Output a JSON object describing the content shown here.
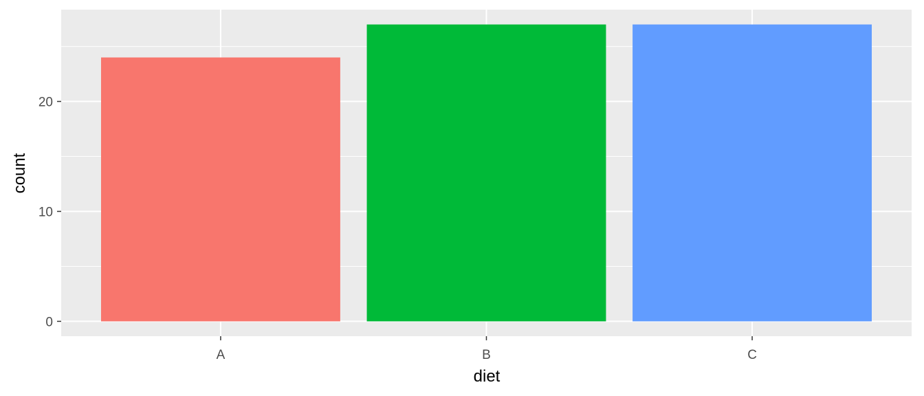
{
  "chart_data": {
    "type": "bar",
    "title": "",
    "xlabel": "diet",
    "ylabel": "count",
    "categories": [
      "A",
      "B",
      "C"
    ],
    "values": [
      24,
      27,
      27
    ],
    "colors": [
      "#F8766D",
      "#00BA38",
      "#619CFF"
    ],
    "ylim": [
      -1.35,
      28.35
    ],
    "yticks": [
      0,
      10,
      20
    ],
    "ytick_labels": [
      "0",
      "10",
      "20"
    ],
    "grid": true,
    "legend": "none",
    "panel_background": "#EBEBEB",
    "gridline_color": "#FFFFFF"
  }
}
